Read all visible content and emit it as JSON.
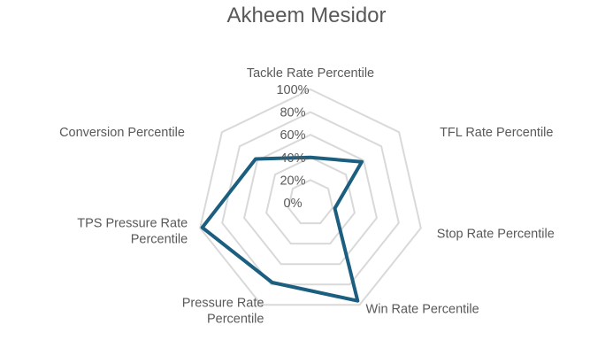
{
  "chart_data": {
    "type": "radar",
    "title": "Akheem Mesidor",
    "categories": [
      "Tackle Rate Percentile",
      "TFL Rate Percentile",
      "Stop Rate Percentile",
      "Win Rate Percentile",
      "Pressure Rate Percentile",
      "TPS Pressure Rate Percentile",
      "Conversion Percentile"
    ],
    "category_lines": [
      [
        "Tackle Rate Percentile"
      ],
      [
        "TFL Rate Percentile"
      ],
      [
        "Stop Rate Percentile"
      ],
      [
        "Win Rate Percentile"
      ],
      [
        "Pressure Rate",
        "Percentile"
      ],
      [
        "TPS Pressure Rate",
        "Percentile"
      ],
      [
        "Conversion Percentile"
      ]
    ],
    "series": [
      {
        "values": [
          0.4,
          0.58,
          0.22,
          0.96,
          0.78,
          0.98,
          0.62
        ]
      }
    ],
    "ylim": [
      0,
      1
    ],
    "ticks": [
      "0%",
      "20%",
      "40%",
      "60%",
      "80%",
      "100%"
    ],
    "grid": true,
    "colors": {
      "series": "#1b5e80",
      "grid": "#d9d9d9",
      "text": "#595959"
    }
  }
}
